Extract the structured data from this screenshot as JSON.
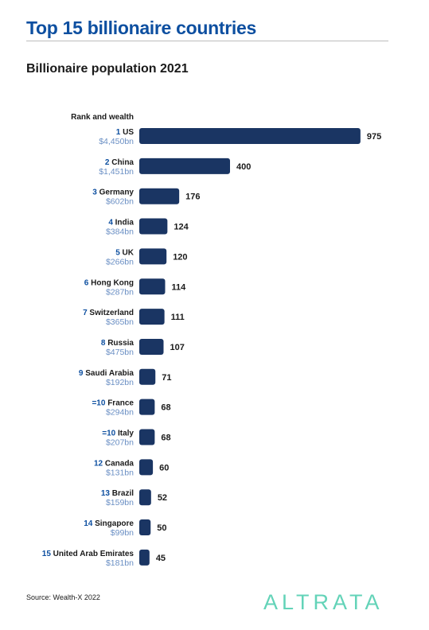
{
  "title": "Top 15 billionaire countries",
  "subtitle": "Billionaire population 2021",
  "column_label": "Rank and wealth",
  "source": "Source: Wealth-X 2022",
  "logo": "ALTRATA",
  "colors": {
    "bar": "#1a3563",
    "rank": "#0d4fa0",
    "wealth": "#6a8fc4",
    "title": "#0d4fa0",
    "logo": "#63d3b8"
  },
  "chart_data": {
    "type": "bar",
    "orientation": "horizontal",
    "title": "Top 15 billionaire countries",
    "subtitle": "Billionaire population 2021",
    "categories": [
      "US",
      "China",
      "Germany",
      "India",
      "UK",
      "Hong Kong",
      "Switzerland",
      "Russia",
      "Saudi Arabia",
      "France",
      "Italy",
      "Canada",
      "Brazil",
      "Singapore",
      "United Arab Emirates"
    ],
    "ranks": [
      "1",
      "2",
      "3",
      "4",
      "5",
      "6",
      "7",
      "8",
      "9",
      "=10",
      "=10",
      "12",
      "13",
      "14",
      "15"
    ],
    "wealth": [
      "$4,450bn",
      "$1,451bn",
      "$602bn",
      "$384bn",
      "$266bn",
      "$287bn",
      "$365bn",
      "$475bn",
      "$192bn",
      "$294bn",
      "$207bn",
      "$131bn",
      "$159bn",
      "$99bn",
      "$181bn"
    ],
    "values": [
      975,
      400,
      176,
      124,
      120,
      114,
      111,
      107,
      71,
      68,
      68,
      60,
      52,
      50,
      45
    ],
    "xlim": [
      0,
      1000
    ],
    "grid": false,
    "legend": "none"
  }
}
